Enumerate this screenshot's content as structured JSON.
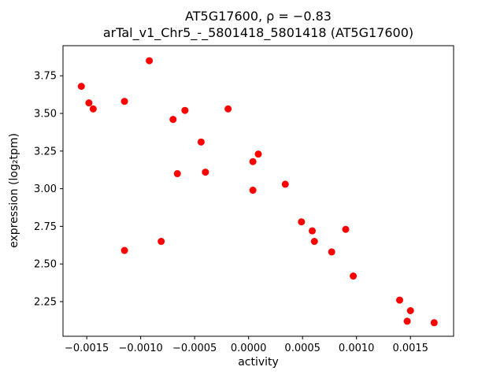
{
  "figure": {
    "background": "#ffffff"
  },
  "chart_data": {
    "type": "scatter",
    "title": "AT5G17600, ρ = −0.83",
    "subtitle": "arTal_v1_Chr5_-_5801418_5801418 (AT5G17600)",
    "xlabel": "activity",
    "ylabel": "expression (log₂tpm)",
    "xlim": [
      -0.00172,
      0.0019
    ],
    "ylim": [
      2.02,
      3.95
    ],
    "xticks": [
      -0.0015,
      -0.001,
      -0.0005,
      0.0,
      0.0005,
      0.001,
      0.0015
    ],
    "xtick_labels": [
      "−0.0015",
      "−0.0010",
      "−0.0005",
      "0.0000",
      "0.0005",
      "0.0010",
      "0.0015"
    ],
    "yticks": [
      2.25,
      2.5,
      2.75,
      3.0,
      3.25,
      3.5,
      3.75
    ],
    "ytick_labels": [
      "2.25",
      "2.50",
      "2.75",
      "3.00",
      "3.25",
      "3.50",
      "3.75"
    ],
    "grid": false,
    "legend": null,
    "marker_color": "#ff0000",
    "axis_color": "#000000",
    "points": [
      [
        -0.00155,
        3.68
      ],
      [
        -0.00148,
        3.57
      ],
      [
        -0.00144,
        3.53
      ],
      [
        -0.00115,
        3.58
      ],
      [
        -0.00092,
        3.85
      ],
      [
        -0.0007,
        3.46
      ],
      [
        -0.00059,
        3.52
      ],
      [
        -0.00066,
        3.1
      ],
      [
        -0.00044,
        3.31
      ],
      [
        -0.0004,
        3.11
      ],
      [
        -0.00019,
        3.53
      ],
      [
        4e-05,
        3.18
      ],
      [
        9e-05,
        3.23
      ],
      [
        4e-05,
        2.99
      ],
      [
        0.00034,
        3.03
      ],
      [
        -0.00115,
        2.59
      ],
      [
        -0.00081,
        2.65
      ],
      [
        0.00049,
        2.78
      ],
      [
        0.00059,
        2.72
      ],
      [
        0.00061,
        2.65
      ],
      [
        0.00077,
        2.58
      ],
      [
        0.0009,
        2.73
      ],
      [
        0.00097,
        2.42
      ],
      [
        0.0014,
        2.26
      ],
      [
        0.00147,
        2.12
      ],
      [
        0.0015,
        2.19
      ],
      [
        0.00172,
        2.11
      ]
    ]
  }
}
